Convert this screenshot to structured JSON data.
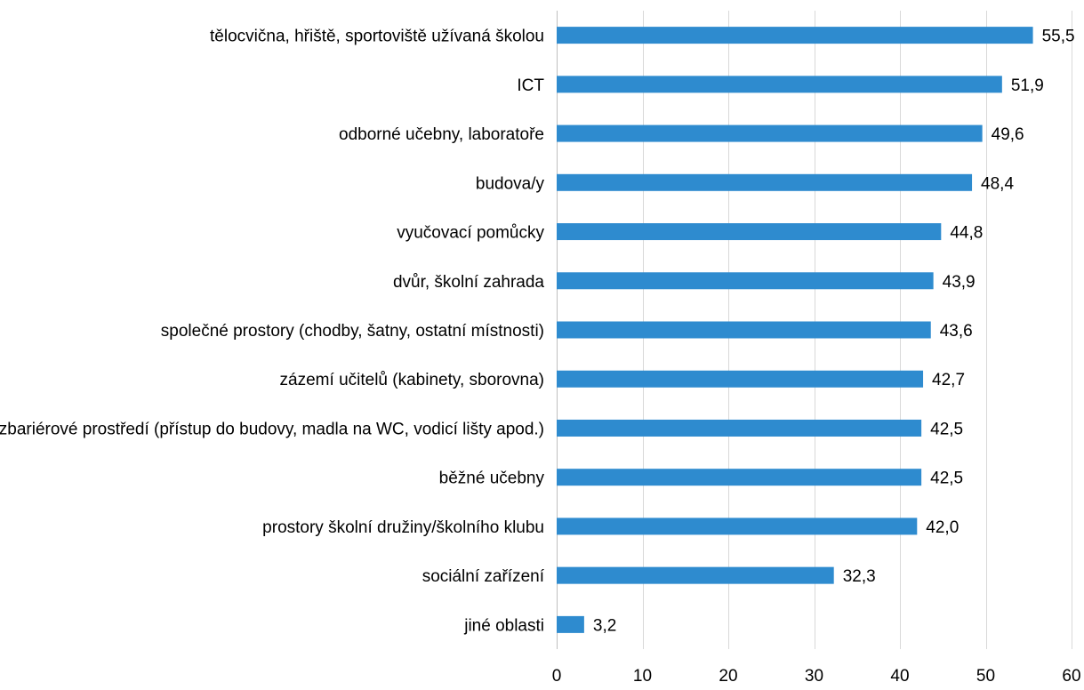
{
  "chart_data": {
    "type": "bar",
    "orientation": "horizontal",
    "categories": [
      "tělocvična, hřiště, sportoviště užívaná školou",
      "ICT",
      "odborné učebny, laboratoře",
      "budova/y",
      "vyučovací pomůcky",
      "dvůr, školní zahrada",
      "společné prostory (chodby, šatny, ostatní místnosti)",
      "zázemí učitelů (kabinety, sborovna)",
      "bezbariérové prostředí (přístup do budovy, madla na WC, vodicí lišty apod.)",
      "běžné učebny",
      "prostory školní družiny/školního klubu",
      "sociální zařízení",
      "jiné oblasti"
    ],
    "values": [
      55.5,
      51.9,
      49.6,
      48.4,
      44.8,
      43.9,
      43.6,
      42.7,
      42.5,
      42.5,
      42.0,
      32.3,
      3.2
    ],
    "value_labels": [
      "55,5",
      "51,9",
      "49,6",
      "48,4",
      "44,8",
      "43,9",
      "43,6",
      "42,7",
      "42,5",
      "42,5",
      "42,0",
      "32,3",
      "3,2"
    ],
    "xlim": [
      0,
      60
    ],
    "x_ticks": [
      0,
      10,
      20,
      30,
      40,
      50,
      60
    ],
    "x_tick_labels": [
      "0",
      "10",
      "20",
      "30",
      "40",
      "50",
      "60"
    ],
    "title": "",
    "xlabel": "",
    "ylabel": "",
    "grid": "vertical",
    "legend": "none",
    "bar_color": "#2e8bcf"
  }
}
